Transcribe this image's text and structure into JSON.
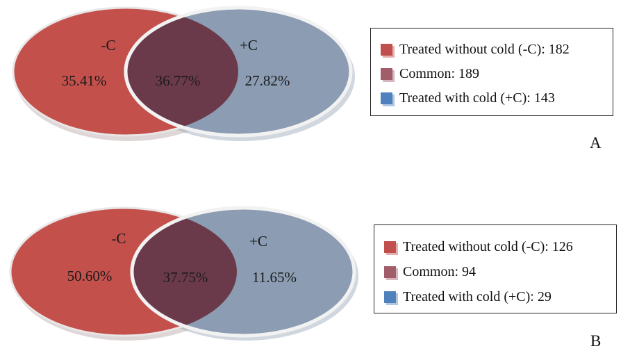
{
  "colors": {
    "minus_c": "#c0504d",
    "common": "#a25d6a",
    "plus_c": "#4f81bd",
    "overlap_fill": "#6b3a4a",
    "minus_circle": "#c4504c",
    "plus_circle": "#8b9cb3"
  },
  "panels": [
    {
      "label": "A",
      "venn": {
        "left_label": "-C",
        "right_label": "+C",
        "left_pct": "35.41%",
        "common_pct": "36.77%",
        "right_pct": "27.82%"
      },
      "legend": [
        {
          "text": "Treated without cold (-C): 182",
          "swatch": "minus_c"
        },
        {
          "text": "Common: 189",
          "swatch": "common"
        },
        {
          "text": "Treated with cold (+C): 143",
          "swatch": "plus_c"
        }
      ]
    },
    {
      "label": "B",
      "venn": {
        "left_label": "-C",
        "right_label": "+C",
        "left_pct": "50.60%",
        "common_pct": "37.75%",
        "right_pct": "11.65%"
      },
      "legend": [
        {
          "text": "Treated without cold (-C): 126",
          "swatch": "minus_c"
        },
        {
          "text": "Common: 94",
          "swatch": "common"
        },
        {
          "text": "Treated with cold (+C): 29",
          "swatch": "plus_c"
        }
      ]
    }
  ]
}
